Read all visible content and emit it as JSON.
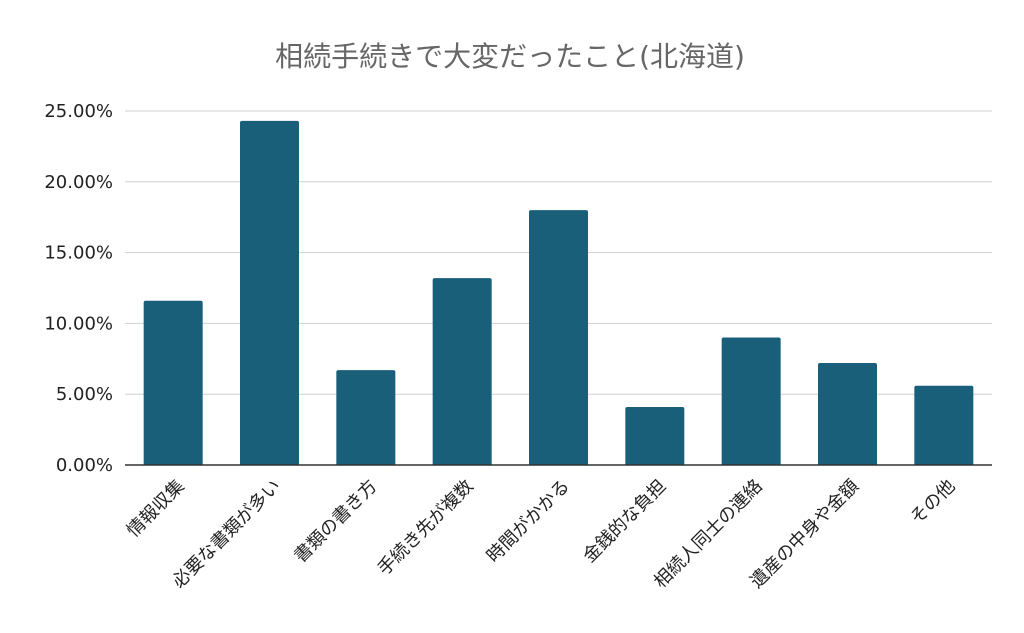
{
  "chart_data": {
    "type": "bar",
    "title": "相続手続きで大変だったこと(北海道)",
    "xlabel": "",
    "ylabel": "",
    "categories": [
      "情報収集",
      "必要な書類が多い",
      "書類の書き方",
      "手続き先が複数",
      "時間がかかる",
      "金銭的な負担",
      "相続人同士の連絡",
      "遺産の中身や金額",
      "その他"
    ],
    "values": [
      11.6,
      24.3,
      6.7,
      13.2,
      18.0,
      4.1,
      9.0,
      7.2,
      5.6
    ],
    "ylim": [
      0,
      25
    ],
    "yticks": [
      "0.00%",
      "5.00%",
      "10.00%",
      "15.00%",
      "20.00%",
      "25.00%"
    ],
    "grid": true,
    "legend": "none",
    "bar_color": "#1a5f7a",
    "grid_color": "#d0d0d0",
    "axis_color": "#333333",
    "title_color": "#666666",
    "label_color": "#222222"
  }
}
